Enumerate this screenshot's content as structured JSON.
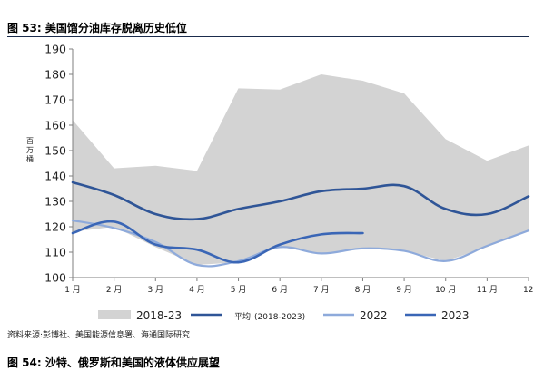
{
  "figure": {
    "title": "图 53:  美国馏分油库存脱离历史低位",
    "source": "资料来源:彭博社、美国能源信息署、海通国际研究",
    "next_title": "图 54:  沙特、俄罗斯和美国的液体供应展望"
  },
  "chart_data": {
    "type": "area",
    "ylabel": "百万桶",
    "ylim": [
      100,
      190
    ],
    "yticks": [
      "100",
      "110",
      "120",
      "130",
      "140",
      "150",
      "160",
      "170",
      "180",
      "190"
    ],
    "categories": [
      "1 月",
      "2 月",
      "3 月",
      "4 月",
      "5 月",
      "6 月",
      "7 月",
      "8 月",
      "9 月",
      "10 月",
      "11 月",
      "12 月"
    ],
    "grid": false,
    "legend_position": "bottom",
    "range_band": {
      "name": "2018-23",
      "color": "#d3d3d3",
      "upper": [
        162,
        143,
        144,
        142,
        174.5,
        174,
        180,
        177.5,
        172.5,
        154.5,
        146,
        152
      ],
      "lower": [
        118,
        120,
        112,
        105,
        106,
        112,
        109.5,
        111.5,
        110.5,
        106.5,
        112,
        118.5
      ]
    },
    "series": [
      {
        "name": "平均",
        "legend_suffix": "(2018-2023)",
        "color": "#2f5597",
        "width": 2.6,
        "values": [
          137.5,
          132.5,
          125,
          123,
          127,
          130,
          134,
          135,
          136,
          127,
          125,
          132
        ]
      },
      {
        "name": "2022",
        "color": "#8eaadb",
        "width": 2.2,
        "values": [
          122.5,
          119.5,
          114,
          105,
          106.5,
          112,
          109.5,
          111.5,
          110.5,
          106.5,
          112.5,
          118.5
        ]
      },
      {
        "name": "2023",
        "color": "#3a66b6",
        "width": 2.6,
        "values": [
          117.5,
          122,
          113,
          111,
          106,
          113,
          117,
          117.5,
          null,
          null,
          null,
          null
        ]
      }
    ]
  }
}
